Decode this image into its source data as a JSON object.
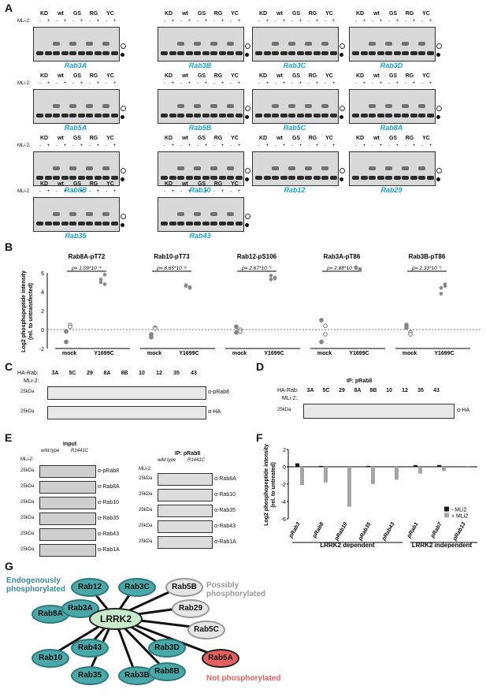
{
  "panels": {
    "A": "A",
    "B": "B",
    "C": "C",
    "D": "D",
    "E": "E",
    "F": "F",
    "G": "G"
  },
  "panelA": {
    "mli_label": "MLi-2:",
    "lane_headers": [
      "KD",
      "wt",
      "GS",
      "RG",
      "YC"
    ],
    "mli_signs": [
      "-",
      "+",
      "-",
      "+",
      "-",
      "+",
      "-",
      "+",
      "-",
      "+"
    ],
    "blots": [
      "Rab3A",
      "Rab3B",
      "Rab3C",
      "Rab3D",
      "Rab5A",
      "Rab5B",
      "Rab5C",
      "Rab8A",
      "Rab8B",
      "Rab10",
      "Rab12",
      "Rab29",
      "Rab35",
      "Rab43"
    ]
  },
  "panelB": {
    "ylabel": "Log2 phosphopeptide intensity\n(rel. to untransfected)",
    "yticks": [
      "6",
      "4",
      "2",
      "0",
      "-2"
    ],
    "groups": [
      {
        "title": "Rab8A-pT72",
        "p": "p= 1.09*10⁻⁴",
        "x": [
          "mock",
          "Y1699C"
        ]
      },
      {
        "title": "Rab10-pT73",
        "p": "p= 8.65*10⁻⁶",
        "x": [
          "mock",
          "Y1699C"
        ]
      },
      {
        "title": "Rab12-pS106",
        "p": "p= 2.67*10⁻⁵",
        "x": [
          "mock",
          "Y1699C"
        ]
      },
      {
        "title": "Rab3A-pT86",
        "p": "p= 2.88*10⁻⁵",
        "x": [
          "mock",
          "Y1699C"
        ]
      },
      {
        "title": "Rab3B-pT86",
        "p": "p= 2.33*10⁻⁵",
        "x": [
          "mock",
          "Y1699C"
        ]
      }
    ]
  },
  "panelC": {
    "ha_rab_label": "HA-Rab:",
    "mli_label": "MLi-2:",
    "lanes": [
      "3A",
      "5C",
      "29",
      "8A",
      "8B",
      "10",
      "12",
      "35",
      "43"
    ],
    "mw": [
      "25kDa",
      "25kDa"
    ],
    "antibodies": [
      "α-pRab8",
      "α-HA"
    ]
  },
  "panelD": {
    "ip": "IP: pRab8",
    "ha_rab_label": "HA-Rab:",
    "mli_label": "MLi-2:",
    "lanes": [
      "3A",
      "5C",
      "29",
      "8A",
      "8B",
      "10",
      "12",
      "35",
      "43"
    ],
    "mw": "25kDa",
    "antibody": "α-HA"
  },
  "panelE": {
    "input": "Input",
    "ip": "IP: pRab8",
    "genotypes": [
      "wild type",
      "R1441C"
    ],
    "mli_label": "MLi-2:",
    "left_abs": [
      "α-pRab8",
      "α-Rab8A",
      "α-Rab10",
      "α-Rab35",
      "α-Rab43",
      "α-Rab1A"
    ],
    "right_abs": [
      "α-Rab8A",
      "α-Rab10",
      "α-Rab35",
      "α-Rab43",
      "α-Rab1A"
    ],
    "mw": "25kDa"
  },
  "panelF": {
    "ylabel": "Log2 phosphopeptide intensity\n(rel. to untreated)",
    "legend": [
      "- MLi2",
      "+ MLi2"
    ],
    "groups": [
      "LRRK2 dependent",
      "LRRK2 independent"
    ]
  },
  "chart_data": {
    "type": "bar",
    "categories": [
      "pRab3",
      "pRab8",
      "pRab10",
      "pRab35",
      "pRab43",
      "pRab1",
      "pRab7",
      "pRab13"
    ],
    "ylim": [
      -6,
      2
    ],
    "series": [
      {
        "name": "- MLi2",
        "values": [
          0.4,
          0.1,
          0.0,
          0.1,
          0.0,
          0.2,
          0.2,
          0.0
        ]
      },
      {
        "name": "+ MLi2",
        "values": [
          -2.1,
          -1.8,
          -4.6,
          -2.0,
          -1.5,
          -0.8,
          -0.5,
          0.1
        ]
      }
    ],
    "colors": [
      "#1a1a1a",
      "#a6a6a6"
    ]
  },
  "panelG": {
    "center": "LRRK2",
    "endogenous": [
      "Rab12",
      "Rab3C",
      "Rab8A",
      "Rab3A",
      "Rab10",
      "Rab43",
      "Rab3D",
      "Rab35",
      "Rab3B",
      "Rab8B"
    ],
    "possible": [
      "Rab5B",
      "Rab29",
      "Rab5C"
    ],
    "not": [
      "Rab5A"
    ],
    "label_endogenous": "Endogenously\nphosphorylated",
    "label_possible": "Possibly\nphosphorylated",
    "label_not": "Not phosphorylated",
    "colors": {
      "endogenous": "#4aa8a8",
      "possible": "#e6e6e6",
      "not": "#e46060",
      "center": "#c8eccb"
    }
  }
}
